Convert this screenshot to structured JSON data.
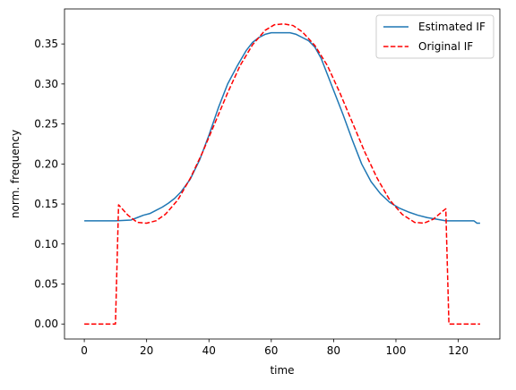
{
  "chart_data": {
    "type": "line",
    "title": "",
    "xlabel": "time",
    "ylabel": "norm. frequency",
    "xlim": [
      -6.35,
      133.35
    ],
    "ylim": [
      -0.01875,
      0.39375
    ],
    "xticks": [
      0,
      20,
      40,
      60,
      80,
      100,
      120
    ],
    "yticks": [
      0.0,
      0.05,
      0.1,
      0.15,
      0.2,
      0.25,
      0.3,
      0.35
    ],
    "ytick_labels": [
      "0.00",
      "0.05",
      "0.10",
      "0.15",
      "0.20",
      "0.25",
      "0.30",
      "0.35"
    ],
    "grid": false,
    "legend_position": "top-right",
    "series": [
      {
        "name": "Estimated IF",
        "color": "#1f77b4",
        "style": "solid",
        "x": [
          0,
          5,
          10,
          15,
          17,
          19,
          21,
          23,
          25,
          27,
          29,
          31,
          34,
          37,
          40,
          43,
          46,
          49,
          52,
          54,
          56,
          58,
          60,
          62,
          64,
          66,
          68,
          70,
          72,
          74,
          76,
          78,
          80,
          83,
          86,
          89,
          92,
          95,
          98,
          101,
          104,
          107,
          110,
          113,
          116,
          120,
          125,
          126,
          127
        ],
        "y": [
          0.129,
          0.129,
          0.129,
          0.13,
          0.133,
          0.136,
          0.138,
          0.142,
          0.146,
          0.151,
          0.157,
          0.165,
          0.181,
          0.205,
          0.236,
          0.27,
          0.3,
          0.322,
          0.342,
          0.352,
          0.358,
          0.362,
          0.364,
          0.364,
          0.364,
          0.364,
          0.362,
          0.358,
          0.354,
          0.346,
          0.332,
          0.312,
          0.292,
          0.262,
          0.23,
          0.2,
          0.178,
          0.163,
          0.152,
          0.145,
          0.14,
          0.136,
          0.133,
          0.131,
          0.129,
          0.129,
          0.129,
          0.126,
          0.126
        ]
      },
      {
        "name": "Original IF",
        "color": "#ff0000",
        "style": "dashed",
        "x": [
          0,
          10,
          11,
          14,
          17,
          20,
          23,
          26,
          30,
          34,
          38,
          42,
          46,
          50,
          54,
          58,
          61,
          64,
          67,
          70,
          74,
          78,
          82,
          86,
          90,
          94,
          98,
          102,
          106,
          109,
          112,
          115,
          116,
          117,
          127
        ],
        "y": [
          0.0,
          0.0,
          0.149,
          0.136,
          0.127,
          0.126,
          0.129,
          0.137,
          0.155,
          0.182,
          0.215,
          0.252,
          0.289,
          0.323,
          0.349,
          0.367,
          0.374,
          0.375,
          0.373,
          0.365,
          0.348,
          0.323,
          0.289,
          0.252,
          0.215,
          0.182,
          0.155,
          0.137,
          0.127,
          0.126,
          0.131,
          0.141,
          0.144,
          0.0,
          0.0
        ]
      }
    ]
  }
}
